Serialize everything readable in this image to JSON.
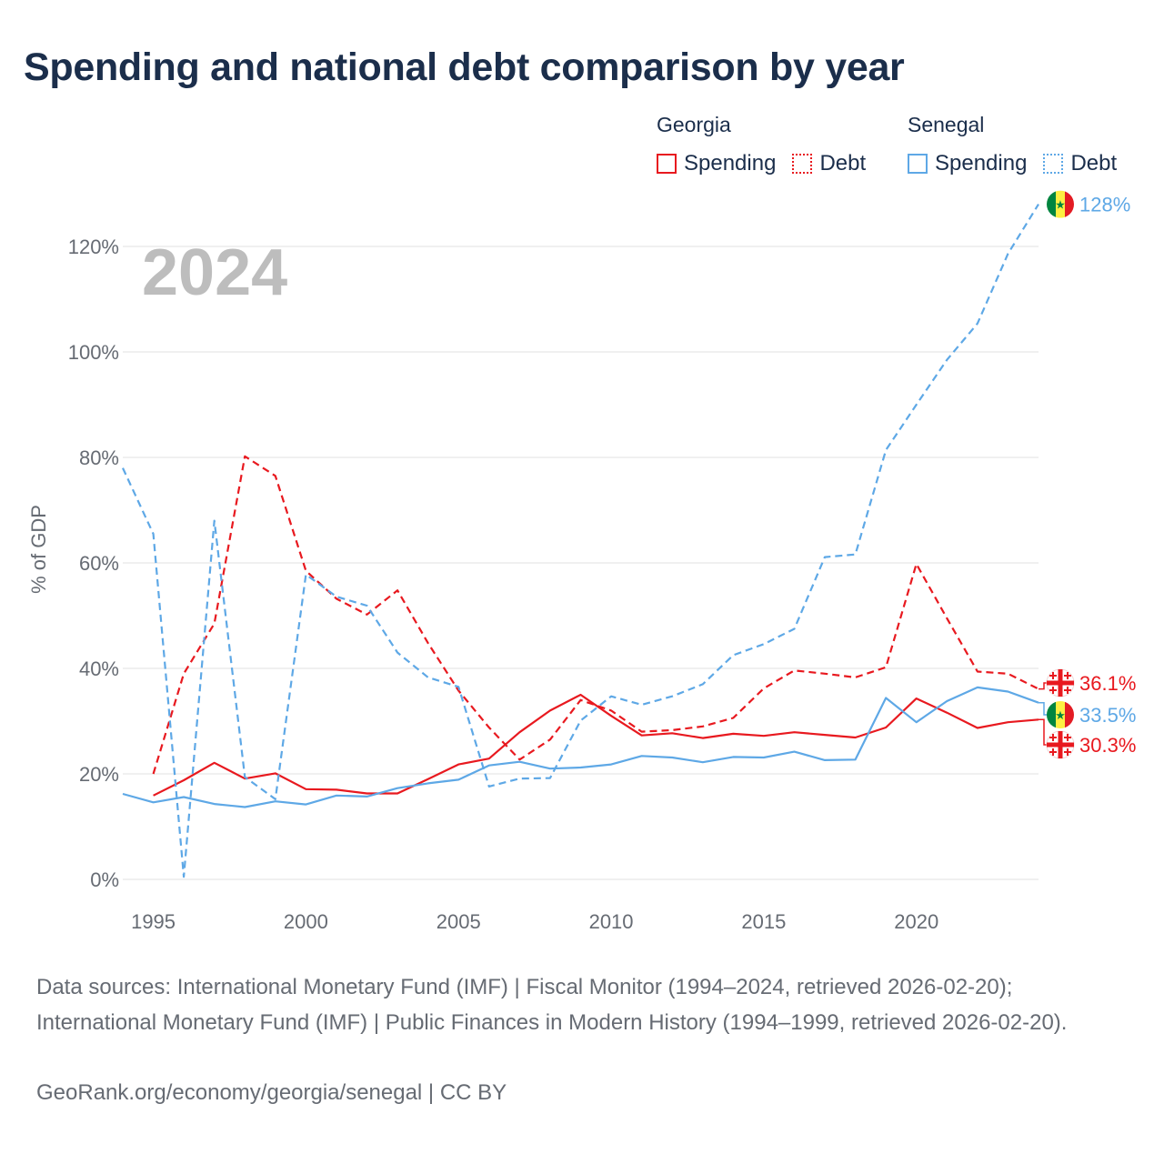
{
  "title": "Spending and national debt comparison by year",
  "legend": {
    "groups": [
      {
        "country": "Georgia",
        "items": [
          {
            "label": "Spending",
            "style": "solid",
            "color": "#e8191f"
          },
          {
            "label": "Debt",
            "style": "dotted",
            "color": "#e8191f"
          }
        ]
      },
      {
        "country": "Senegal",
        "items": [
          {
            "label": "Spending",
            "style": "solid",
            "color": "#5ea8e6"
          },
          {
            "label": "Debt",
            "style": "dotted",
            "color": "#5ea8e6"
          }
        ]
      }
    ]
  },
  "chart_data": {
    "type": "line",
    "year_label": "2024",
    "ylabel": "% of GDP",
    "xlim": [
      1994,
      2024
    ],
    "ylim": [
      0,
      130
    ],
    "y_ticks": [
      0,
      20,
      40,
      60,
      80,
      100,
      120
    ],
    "y_tick_labels": [
      "0%",
      "20%",
      "40%",
      "60%",
      "80%",
      "100%",
      "120%"
    ],
    "x_ticks": [
      1995,
      2000,
      2005,
      2010,
      2015,
      2020
    ],
    "series": [
      {
        "name": "Georgia Spending",
        "color": "#e8191f",
        "dash": false,
        "points": [
          [
            1995,
            15.9
          ],
          [
            1996,
            18.8
          ],
          [
            1997,
            22.1
          ],
          [
            1998,
            19.1
          ],
          [
            1999,
            20.1
          ],
          [
            2000,
            17.1
          ],
          [
            2001,
            17.0
          ],
          [
            2002,
            16.3
          ],
          [
            2003,
            16.3
          ],
          [
            2004,
            19.0
          ],
          [
            2005,
            21.8
          ],
          [
            2006,
            22.9
          ],
          [
            2007,
            27.9
          ],
          [
            2008,
            32.0
          ],
          [
            2009,
            35.0
          ],
          [
            2010,
            31.0
          ],
          [
            2011,
            27.3
          ],
          [
            2012,
            27.7
          ],
          [
            2013,
            26.8
          ],
          [
            2014,
            27.6
          ],
          [
            2015,
            27.2
          ],
          [
            2016,
            27.9
          ],
          [
            2017,
            27.4
          ],
          [
            2018,
            26.9
          ],
          [
            2019,
            28.8
          ],
          [
            2020,
            34.3
          ],
          [
            2021,
            31.6
          ],
          [
            2022,
            28.7
          ],
          [
            2023,
            29.8
          ],
          [
            2024,
            30.3
          ]
        ]
      },
      {
        "name": "Georgia Debt",
        "color": "#e8191f",
        "dash": true,
        "points": [
          [
            1995,
            20.0
          ],
          [
            1996,
            39.0
          ],
          [
            1997,
            48.5
          ],
          [
            1998,
            80.2
          ],
          [
            1999,
            76.5
          ],
          [
            2000,
            58.5
          ],
          [
            2001,
            53.2
          ],
          [
            2002,
            50.2
          ],
          [
            2003,
            54.8
          ],
          [
            2004,
            44.8
          ],
          [
            2005,
            35.8
          ],
          [
            2006,
            28.8
          ],
          [
            2007,
            22.7
          ],
          [
            2008,
            26.5
          ],
          [
            2009,
            34.0
          ],
          [
            2010,
            32.0
          ],
          [
            2011,
            28.0
          ],
          [
            2012,
            28.3
          ],
          [
            2013,
            29.0
          ],
          [
            2014,
            30.6
          ],
          [
            2015,
            36.2
          ],
          [
            2016,
            39.6
          ],
          [
            2017,
            39.0
          ],
          [
            2018,
            38.3
          ],
          [
            2019,
            40.2
          ],
          [
            2020,
            59.8
          ],
          [
            2021,
            49.5
          ],
          [
            2022,
            39.4
          ],
          [
            2023,
            39.0
          ],
          [
            2024,
            36.1
          ]
        ]
      },
      {
        "name": "Senegal Spending",
        "color": "#5ea8e6",
        "dash": false,
        "points": [
          [
            1994,
            16.2
          ],
          [
            1995,
            14.6
          ],
          [
            1996,
            15.6
          ],
          [
            1997,
            14.3
          ],
          [
            1998,
            13.7
          ],
          [
            1999,
            14.8
          ],
          [
            2000,
            14.2
          ],
          [
            2001,
            15.9
          ],
          [
            2002,
            15.7
          ],
          [
            2003,
            17.3
          ],
          [
            2004,
            18.2
          ],
          [
            2005,
            18.9
          ],
          [
            2006,
            21.6
          ],
          [
            2007,
            22.3
          ],
          [
            2008,
            21.0
          ],
          [
            2009,
            21.2
          ],
          [
            2010,
            21.8
          ],
          [
            2011,
            23.4
          ],
          [
            2012,
            23.1
          ],
          [
            2013,
            22.2
          ],
          [
            2014,
            23.2
          ],
          [
            2015,
            23.1
          ],
          [
            2016,
            24.2
          ],
          [
            2017,
            22.6
          ],
          [
            2018,
            22.7
          ],
          [
            2019,
            34.4
          ],
          [
            2020,
            29.8
          ],
          [
            2021,
            33.8
          ],
          [
            2022,
            36.4
          ],
          [
            2023,
            35.6
          ],
          [
            2024,
            33.5
          ]
        ]
      },
      {
        "name": "Senegal Debt",
        "color": "#5ea8e6",
        "dash": true,
        "points": [
          [
            1994,
            78.0
          ],
          [
            1995,
            65.5
          ],
          [
            1996,
            0.5
          ],
          [
            1997,
            68.0
          ],
          [
            1998,
            19.4
          ],
          [
            1999,
            15.2
          ],
          [
            2000,
            57.8
          ],
          [
            2001,
            53.6
          ],
          [
            2002,
            51.9
          ],
          [
            2003,
            43.0
          ],
          [
            2004,
            38.3
          ],
          [
            2005,
            36.5
          ],
          [
            2006,
            17.6
          ],
          [
            2007,
            19.1
          ],
          [
            2008,
            19.2
          ],
          [
            2009,
            30.1
          ],
          [
            2010,
            34.7
          ],
          [
            2011,
            33.1
          ],
          [
            2012,
            34.7
          ],
          [
            2013,
            37.0
          ],
          [
            2014,
            42.5
          ],
          [
            2015,
            44.6
          ],
          [
            2016,
            47.5
          ],
          [
            2017,
            61.1
          ],
          [
            2018,
            61.6
          ],
          [
            2019,
            81.4
          ],
          [
            2020,
            90.0
          ],
          [
            2021,
            98.5
          ],
          [
            2022,
            105.4
          ],
          [
            2023,
            118.6
          ],
          [
            2024,
            128.0
          ]
        ]
      }
    ],
    "end_labels": [
      {
        "text": "128%",
        "value": 128.0,
        "color": "#5ea8e6",
        "flag": "senegal"
      },
      {
        "text": "36.1%",
        "value": 36.1,
        "color": "#e8191f",
        "flag": "georgia"
      },
      {
        "text": "33.5%",
        "value": 33.5,
        "color": "#5ea8e6",
        "flag": "senegal"
      },
      {
        "text": "30.3%",
        "value": 30.3,
        "color": "#e8191f",
        "flag": "georgia"
      }
    ]
  },
  "footer": {
    "sources": "Data sources: International Monetary Fund (IMF) | Fiscal Monitor (1994–2024, retrieved 2026-02-20); International Monetary Fund (IMF) | Public Finances in Modern History (1994–1999, retrieved 2026-02-20).",
    "credit": "GeoRank.org/economy/georgia/senegal | CC BY"
  }
}
